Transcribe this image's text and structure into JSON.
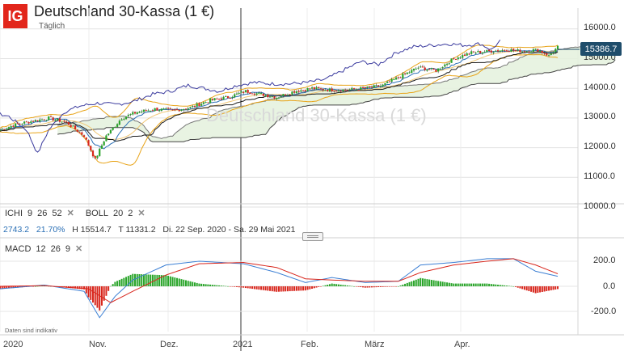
{
  "header": {
    "logo": "IG",
    "title": "Deutschland 30-Kassa (1 €)",
    "subtitle": "Täglich",
    "watermark": "Deutschland 30-Kassa (1 €)"
  },
  "indicators": {
    "ichi": {
      "label": "ICHI",
      "p1": "9",
      "p2": "26",
      "p3": "52",
      "remove": "✕"
    },
    "boll": {
      "label": "BOLL",
      "p1": "20",
      "p2": "2",
      "remove": "✕"
    },
    "macd": {
      "label": "MACD",
      "p1": "12",
      "p2": "26",
      "p3": "9",
      "remove": "✕"
    }
  },
  "info": {
    "change": "2743.2",
    "change_pct": "21.70%",
    "high": "H 15514.7",
    "low": "T 11331.2",
    "range": "Di. 22 Sep. 2020 - Sa. 29 Mai 2021"
  },
  "current_price": "15386.7",
  "disclaimer": "Daten sind indikativ",
  "colors": {
    "up": "#2aa52a",
    "down": "#d8261c",
    "bollinger": "#e8a317",
    "kijun": "#1a1a1a",
    "tenkan": "#2a6fb5",
    "kumo": "#e6f2df",
    "macd_line": "#3b7fd4",
    "signal_line": "#d8261c"
  },
  "chart_data": {
    "type": "candlestick",
    "title": "Deutschland 30-Kassa (1 €)",
    "interval": "Täglich",
    "x_ticks": [
      "2020",
      "Nov.",
      "Dez.",
      "2021",
      "Feb.",
      "März",
      "Apr."
    ],
    "y_ticks": [
      "16000.0",
      "15000.0",
      "14000.0",
      "13000.0",
      "12000.0",
      "11000.0",
      "10000.0"
    ],
    "ylim": [
      9500,
      16400
    ],
    "close_points": [
      [
        0,
        12600
      ],
      [
        8,
        12800
      ],
      [
        15,
        12900
      ],
      [
        22,
        13000
      ],
      [
        30,
        12850
      ],
      [
        38,
        12400
      ],
      [
        43,
        11600
      ],
      [
        48,
        12400
      ],
      [
        55,
        13000
      ],
      [
        62,
        13200
      ],
      [
        70,
        13300
      ],
      [
        78,
        13250
      ],
      [
        86,
        13350
      ],
      [
        95,
        13600
      ],
      [
        103,
        13700
      ],
      [
        111,
        13900
      ],
      [
        118,
        13800
      ],
      [
        125,
        13700
      ],
      [
        133,
        13900
      ],
      [
        141,
        14000
      ],
      [
        149,
        13950
      ],
      [
        157,
        13950
      ],
      [
        165,
        14000
      ],
      [
        173,
        14100
      ],
      [
        181,
        14400
      ],
      [
        189,
        14700
      ],
      [
        197,
        14600
      ],
      [
        205,
        15000
      ],
      [
        213,
        15200
      ],
      [
        221,
        15250
      ],
      [
        229,
        15300
      ],
      [
        236,
        15250
      ],
      [
        243,
        15300
      ],
      [
        248,
        15100
      ],
      [
        252,
        15386.7
      ]
    ],
    "macd": {
      "ylim": [
        -300,
        300
      ],
      "y_ticks": [
        "200.0",
        "0.0",
        "-200.0"
      ],
      "macd_line": [
        [
          0,
          -20
        ],
        [
          20,
          10
        ],
        [
          38,
          -40
        ],
        [
          45,
          -250
        ],
        [
          52,
          -80
        ],
        [
          60,
          50
        ],
        [
          75,
          170
        ],
        [
          90,
          200
        ],
        [
          110,
          180
        ],
        [
          125,
          110
        ],
        [
          138,
          30
        ],
        [
          150,
          70
        ],
        [
          165,
          30
        ],
        [
          180,
          40
        ],
        [
          190,
          170
        ],
        [
          205,
          190
        ],
        [
          220,
          220
        ],
        [
          232,
          220
        ],
        [
          242,
          120
        ],
        [
          252,
          80
        ]
      ],
      "signal_line": [
        [
          0,
          0
        ],
        [
          20,
          5
        ],
        [
          40,
          -20
        ],
        [
          50,
          -130
        ],
        [
          60,
          -40
        ],
        [
          75,
          90
        ],
        [
          90,
          180
        ],
        [
          110,
          190
        ],
        [
          125,
          150
        ],
        [
          138,
          60
        ],
        [
          150,
          50
        ],
        [
          165,
          40
        ],
        [
          180,
          40
        ],
        [
          190,
          110
        ],
        [
          205,
          170
        ],
        [
          220,
          200
        ],
        [
          232,
          220
        ],
        [
          242,
          170
        ],
        [
          252,
          100
        ]
      ]
    }
  }
}
